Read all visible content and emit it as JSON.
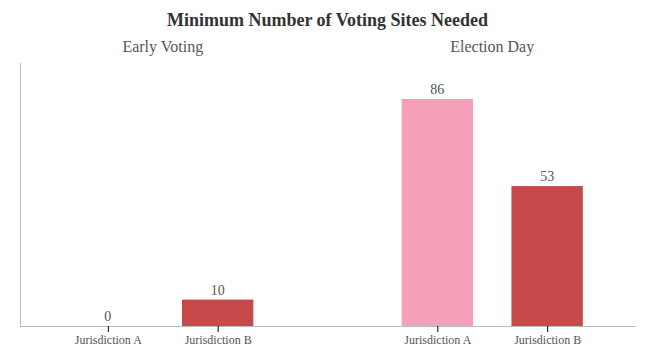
{
  "chart_data": {
    "type": "bar",
    "title": "Minimum Number of Voting Sites Needed",
    "annotations": [
      "Early Voting",
      "Election Day"
    ],
    "categories": [
      "Jurisdiction A",
      "Jurisdiction B",
      "Jurisdiction A",
      "Jurisdiction B"
    ],
    "values": [
      0,
      10,
      86,
      53
    ],
    "colors": [
      "#ffffff",
      "#c8494a",
      "#f5a0b8",
      "#c8494a"
    ],
    "ylim": [
      0,
      100
    ],
    "yticks": [],
    "data_labels": true,
    "tick_labels": "x"
  }
}
